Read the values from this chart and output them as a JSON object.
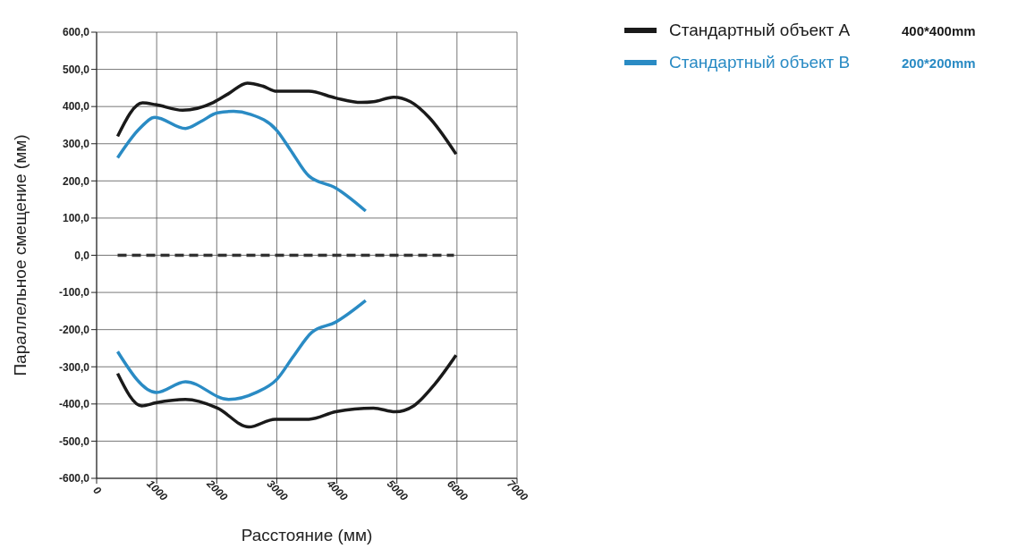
{
  "chart_data": {
    "type": "line",
    "xlabel": "Расстояние (мм)",
    "ylabel": "Параллельное смещение (мм)",
    "xlim": [
      0,
      7000
    ],
    "xticks": [
      0,
      1000,
      2000,
      3000,
      4000,
      5000,
      6000,
      7000
    ],
    "ylim": [
      -600,
      600
    ],
    "yticks": [
      {
        "value": -600,
        "label": "-600,0"
      },
      {
        "value": -500,
        "label": "-500,0"
      },
      {
        "value": -400,
        "label": "-400,0"
      },
      {
        "value": -300,
        "label": "-300,0"
      },
      {
        "value": -200,
        "label": "-200,0"
      },
      {
        "value": -100,
        "label": "-100,0"
      },
      {
        "value": 0,
        "label": "0,0"
      },
      {
        "value": 100,
        "label": "100,0"
      },
      {
        "value": 200,
        "label": "200,0"
      },
      {
        "value": 300,
        "label": "300,0"
      },
      {
        "value": 400,
        "label": "400,0"
      },
      {
        "value": 500,
        "label": "500,0"
      },
      {
        "value": 600,
        "label": "600,0"
      }
    ],
    "grid": true,
    "legend": "top right",
    "marker": "none",
    "annotations": [
      "400*400mm",
      "200*200mm"
    ],
    "series": [
      {
        "name": "Стандартный объект A",
        "color": "#1a1a1a",
        "x": [
          350,
          765,
          985,
          1430,
          1945,
          2200,
          2510,
          2765,
          3000,
          3535,
          3980,
          4405,
          4610,
          4945,
          5225,
          5535,
          5985
        ],
        "values": [
          320,
          410,
          405,
          390,
          411,
          435,
          463,
          455,
          441,
          441,
          423,
          411,
          413,
          425,
          413,
          371,
          272
        ]
      },
      {
        "color": "#1a1a1a",
        "x": [
          350,
          750,
          985,
          1480,
          2010,
          2535,
          2970,
          3535,
          3980,
          4610,
          4970,
          5280,
          5635,
          5985
        ],
        "values": [
          -318,
          -405,
          -397,
          -388,
          -411,
          -462,
          -441,
          -441,
          -421,
          -411,
          -421,
          -405,
          -346,
          -269
        ]
      },
      {
        "name": "Стандартный объект B",
        "color": "#2a8bc4",
        "x": [
          350,
          713,
          970,
          1480,
          1740,
          2010,
          2280,
          2560,
          3000,
          3225,
          3535,
          3980,
          4480
        ],
        "values": [
          262,
          340,
          371,
          341,
          360,
          383,
          387,
          379,
          336,
          284,
          213,
          181,
          119
        ]
      },
      {
        "color": "#2a8bc4",
        "x": [
          350,
          995,
          1480,
          2200,
          2660,
          3000,
          3280,
          3585,
          3980,
          4480
        ],
        "values": [
          -259,
          -369,
          -340,
          -388,
          -369,
          -334,
          -271,
          -207,
          -180,
          -122
        ]
      },
      {
        "color": "#333333",
        "line_style": "dashed",
        "x": [
          350,
          5950
        ],
        "values": [
          0,
          0
        ]
      }
    ]
  }
}
